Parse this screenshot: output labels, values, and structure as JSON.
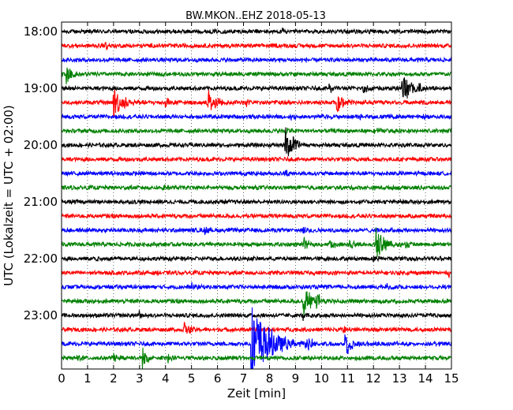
{
  "chart_data": {
    "type": "line",
    "title": "BW.MKON..EHZ 2018-05-13",
    "xlabel": "Zeit  [min]",
    "ylabel": "UTC (Lokalzeit = UTC + 02:00)",
    "xlim": [
      0,
      15
    ],
    "x_ticks": [
      "0",
      "1",
      "2",
      "3",
      "4",
      "5",
      "6",
      "7",
      "8",
      "9",
      "10",
      "11",
      "12",
      "13",
      "14",
      "15"
    ],
    "y_ticks": [
      "18:00",
      "19:00",
      "20:00",
      "21:00",
      "22:00",
      "23:00"
    ],
    "grid": "vertical dotted at each minute",
    "colors": [
      "#000000",
      "#ff0000",
      "#0000ff",
      "#008000"
    ],
    "traces": [
      {
        "start": "18:00",
        "color": "#000000",
        "events": [
          {
            "t": 8.5,
            "a": 0.4
          }
        ]
      },
      {
        "start": "18:15",
        "color": "#ff0000",
        "events": [
          {
            "t": 1.7,
            "a": 0.6
          }
        ]
      },
      {
        "start": "18:30",
        "color": "#0000ff",
        "events": []
      },
      {
        "start": "18:45",
        "color": "#008000",
        "events": [
          {
            "t": 0.2,
            "a": 1.4
          }
        ]
      },
      {
        "start": "19:00",
        "color": "#000000",
        "events": [
          {
            "t": 10.3,
            "a": 0.8
          },
          {
            "t": 11.6,
            "a": 1.0
          },
          {
            "t": 13.1,
            "a": 2.5
          },
          {
            "t": 13.7,
            "a": 1.0
          }
        ]
      },
      {
        "start": "19:15",
        "color": "#ff0000",
        "events": [
          {
            "t": 2.0,
            "a": 2.5
          },
          {
            "t": 4.0,
            "a": 1.0
          },
          {
            "t": 5.6,
            "a": 2.0
          },
          {
            "t": 7.1,
            "a": 0.6
          },
          {
            "t": 10.6,
            "a": 1.5
          }
        ]
      },
      {
        "start": "19:30",
        "color": "#0000ff",
        "events": [
          {
            "t": 8.8,
            "a": 0.6
          },
          {
            "t": 11.5,
            "a": 0.5
          }
        ]
      },
      {
        "start": "19:45",
        "color": "#008000",
        "events": [
          {
            "t": 8.6,
            "a": 0.8
          },
          {
            "t": 12.0,
            "a": 0.6
          }
        ]
      },
      {
        "start": "20:00",
        "color": "#000000",
        "events": [
          {
            "t": 8.6,
            "a": 2.6
          },
          {
            "t": 13.0,
            "a": 0.5
          }
        ]
      },
      {
        "start": "20:15",
        "color": "#ff0000",
        "events": []
      },
      {
        "start": "20:30",
        "color": "#0000ff",
        "events": [
          {
            "t": 8.6,
            "a": 0.6
          }
        ]
      },
      {
        "start": "20:45",
        "color": "#008000",
        "events": [
          {
            "t": 3.9,
            "a": 0.4
          }
        ]
      },
      {
        "start": "21:00",
        "color": "#000000",
        "events": []
      },
      {
        "start": "21:15",
        "color": "#ff0000",
        "events": [
          {
            "t": 12.5,
            "a": 0.4
          }
        ]
      },
      {
        "start": "21:30",
        "color": "#0000ff",
        "events": [
          {
            "t": 5.5,
            "a": 0.6
          },
          {
            "t": 9.3,
            "a": 0.6
          }
        ]
      },
      {
        "start": "21:45",
        "color": "#008000",
        "events": [
          {
            "t": 9.3,
            "a": 1.0
          },
          {
            "t": 10.3,
            "a": 0.9
          },
          {
            "t": 11.1,
            "a": 0.7
          },
          {
            "t": 12.1,
            "a": 2.5
          },
          {
            "t": 13.2,
            "a": 0.7
          }
        ]
      },
      {
        "start": "22:00",
        "color": "#000000",
        "events": [
          {
            "t": 1.3,
            "a": 0.4
          },
          {
            "t": 12.0,
            "a": 0.8
          }
        ]
      },
      {
        "start": "22:15",
        "color": "#ff0000",
        "events": [
          {
            "t": 14.9,
            "a": 0.8
          }
        ]
      },
      {
        "start": "22:30",
        "color": "#0000ff",
        "events": [
          {
            "t": 5.0,
            "a": 0.7
          },
          {
            "t": 12.5,
            "a": 0.6
          }
        ]
      },
      {
        "start": "22:45",
        "color": "#008000",
        "events": [
          {
            "t": 9.3,
            "a": 2.2
          },
          {
            "t": 9.8,
            "a": 1.2
          }
        ]
      },
      {
        "start": "23:00",
        "color": "#000000",
        "events": [
          {
            "t": 3.0,
            "a": 0.8
          },
          {
            "t": 9.3,
            "a": 0.8
          },
          {
            "t": 14.0,
            "a": 0.4
          }
        ]
      },
      {
        "start": "23:15",
        "color": "#ff0000",
        "events": [
          {
            "t": 4.7,
            "a": 1.2
          },
          {
            "t": 10.8,
            "a": 0.8
          }
        ]
      },
      {
        "start": "23:30",
        "color": "#0000ff",
        "events": [
          {
            "t": 7.3,
            "a": 6.0
          },
          {
            "t": 9.4,
            "a": 1.5
          },
          {
            "t": 10.9,
            "a": 2.0
          }
        ]
      },
      {
        "start": "23:45",
        "color": "#008000",
        "events": [
          {
            "t": 0.6,
            "a": 0.6
          },
          {
            "t": 2.0,
            "a": 0.6
          },
          {
            "t": 3.1,
            "a": 1.5
          },
          {
            "t": 4.1,
            "a": 0.5
          }
        ]
      }
    ]
  }
}
